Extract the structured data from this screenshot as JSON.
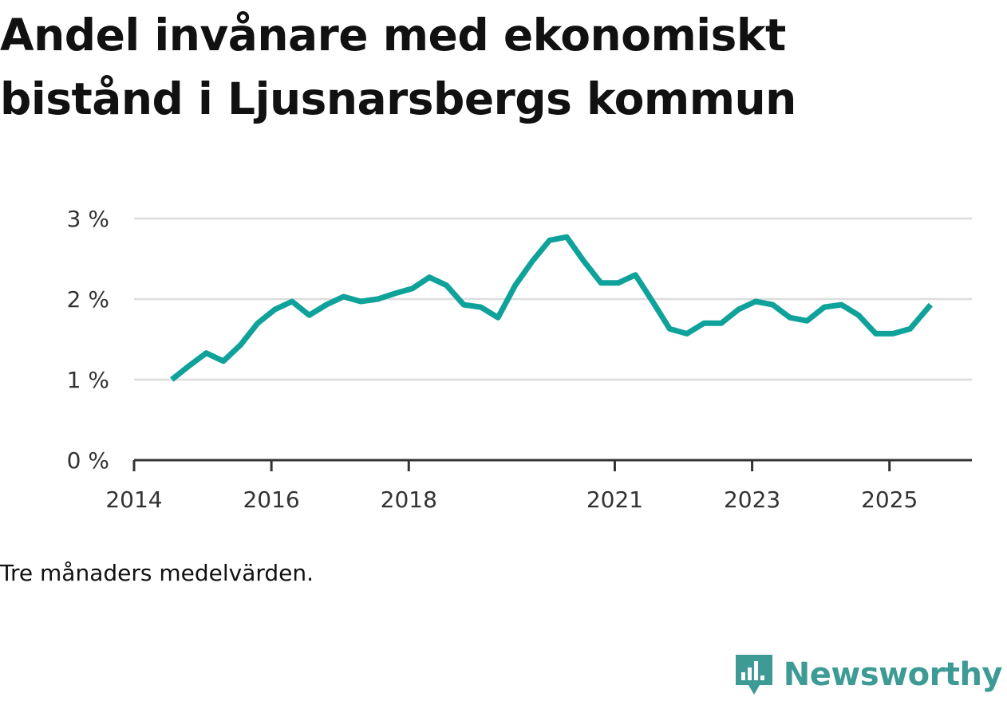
{
  "chart_data": {
    "type": "line",
    "title": "Andel invånare med ekonomiskt bistånd i Ljusnarsbergs kommun",
    "xlabel": "",
    "ylabel": "",
    "ylim": [
      0,
      3
    ],
    "yticks": [
      0,
      1,
      2,
      3
    ],
    "ytick_labels": [
      "0 %",
      "1 %",
      "2 %",
      "3 %"
    ],
    "xlim": [
      2014,
      2026.2
    ],
    "xticks": [
      2014,
      2016,
      2018,
      2021,
      2023,
      2025
    ],
    "xtick_labels": [
      "2014",
      "2016",
      "2018",
      "2021",
      "2023",
      "2025"
    ],
    "grid": true,
    "line_color": "#0fa29a",
    "series": [
      {
        "name": "Andel invånare med ekonomiskt bistånd",
        "x": [
          2014.55,
          2014.8,
          2015.05,
          2015.3,
          2015.55,
          2015.8,
          2016.05,
          2016.3,
          2016.55,
          2016.8,
          2017.05,
          2017.3,
          2017.55,
          2017.8,
          2018.05,
          2018.3,
          2018.55,
          2018.8,
          2019.05,
          2019.3,
          2019.55,
          2019.8,
          2020.05,
          2020.3,
          2020.55,
          2020.8,
          2021.05,
          2021.3,
          2021.55,
          2021.8,
          2022.05,
          2022.3,
          2022.55,
          2022.8,
          2023.05,
          2023.3,
          2023.55,
          2023.8,
          2024.05,
          2024.3,
          2024.55,
          2024.8,
          2025.05,
          2025.3,
          2025.6
        ],
        "values": [
          1.0,
          1.17,
          1.33,
          1.23,
          1.43,
          1.7,
          1.87,
          1.97,
          1.8,
          1.93,
          2.03,
          1.97,
          2.0,
          2.07,
          2.13,
          2.27,
          2.17,
          1.93,
          1.9,
          1.77,
          2.17,
          2.47,
          2.73,
          2.77,
          2.47,
          2.2,
          2.2,
          2.3,
          1.97,
          1.63,
          1.57,
          1.7,
          1.7,
          1.87,
          1.97,
          1.93,
          1.77,
          1.73,
          1.9,
          1.93,
          1.8,
          1.57,
          1.57,
          1.63,
          1.93
        ]
      }
    ],
    "note": "Tre månaders medelvärden."
  },
  "brand": {
    "name": "Newsworthy",
    "color": "#3d9a94",
    "icon": "newsworthy-logo-icon"
  }
}
